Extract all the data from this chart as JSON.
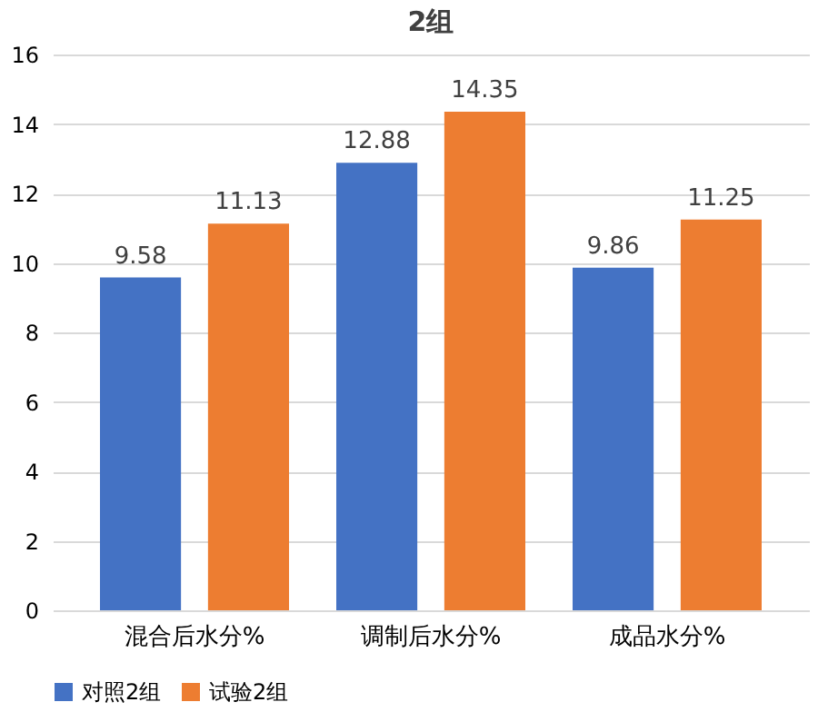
{
  "chart_data": {
    "type": "bar",
    "title": "2组",
    "categories": [
      "混合后水分%",
      "调制后水分%",
      "成品水分%"
    ],
    "series": [
      {
        "name": "对照2组",
        "color": "#4472c4",
        "values": [
          9.58,
          12.88,
          9.86
        ]
      },
      {
        "name": "试验2组",
        "color": "#ed7d31",
        "values": [
          11.13,
          14.35,
          11.25
        ]
      }
    ],
    "ylim": [
      0,
      16
    ],
    "yticks": [
      0,
      2,
      4,
      6,
      8,
      10,
      12,
      14,
      16
    ],
    "grid": "y",
    "legend": "bottom",
    "data_labels": true
  }
}
